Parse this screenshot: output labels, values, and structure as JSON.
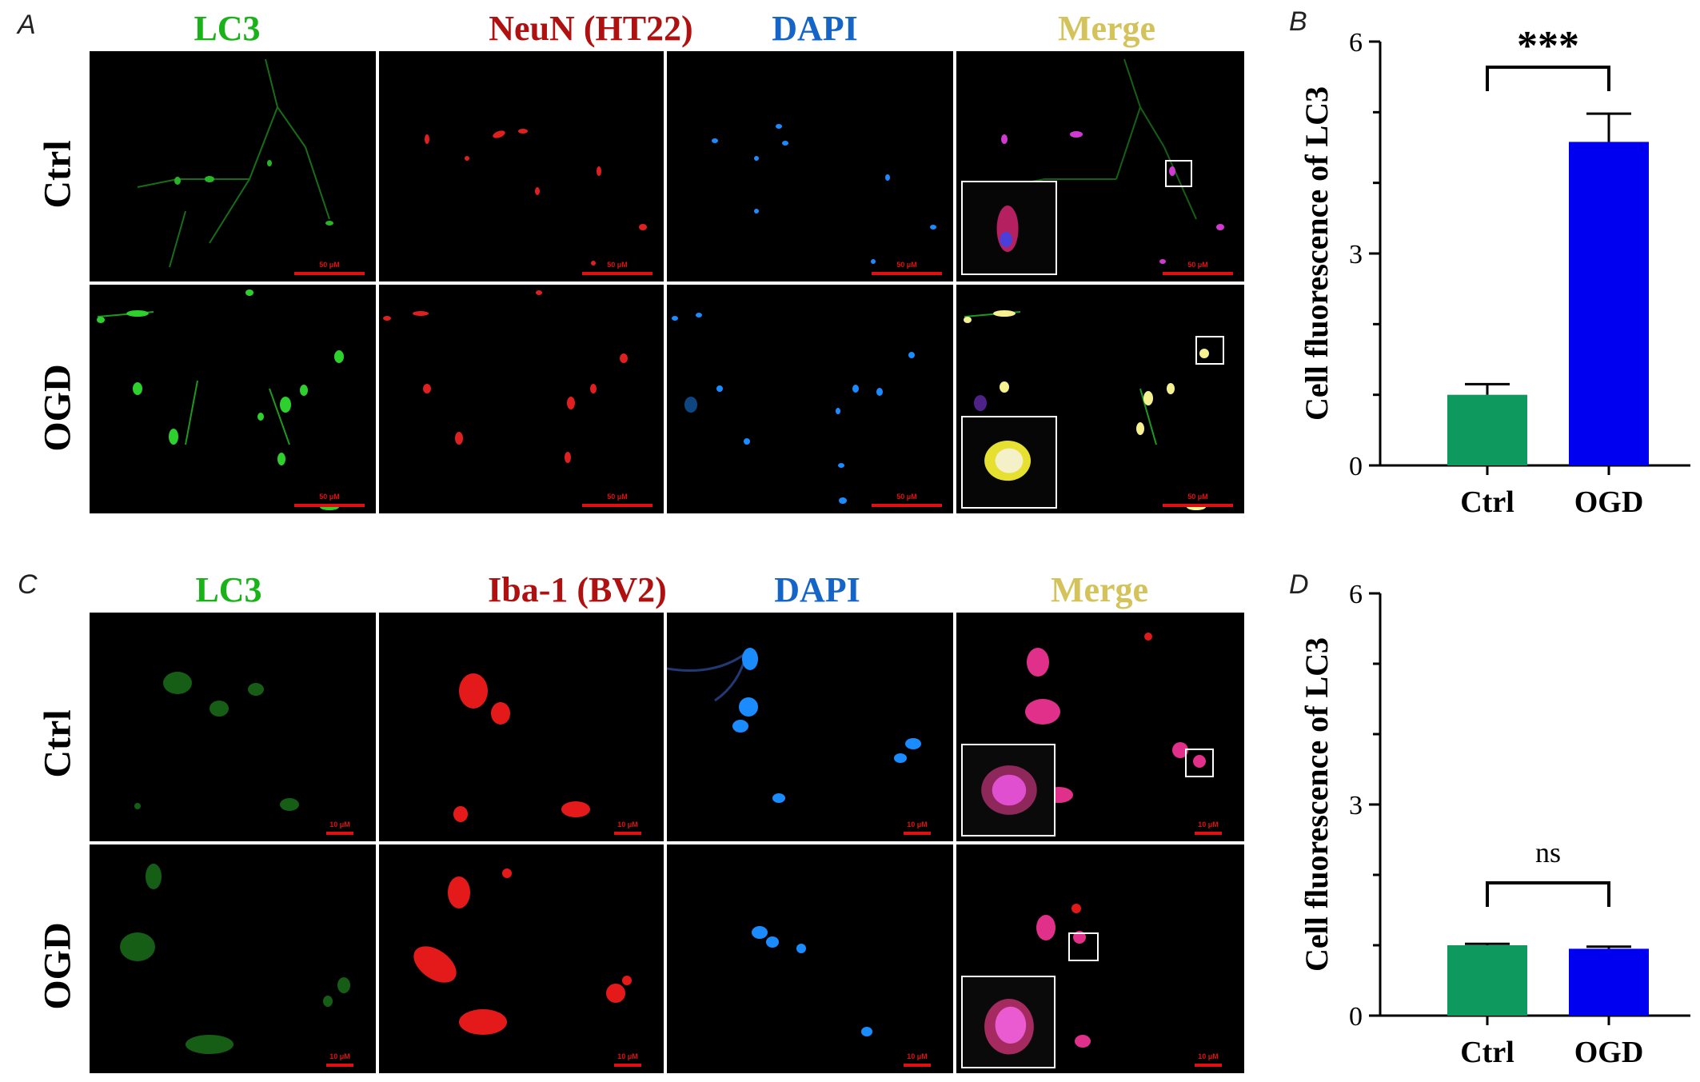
{
  "panels": {
    "A": {
      "letter": "A",
      "columns": [
        {
          "label": "LC3",
          "color": "#19b319"
        },
        {
          "label": "NeuN (HT22)",
          "color": "#b01010"
        },
        {
          "label": "DAPI",
          "color": "#1565c8"
        },
        {
          "label": "Merge",
          "color": "#d4c25a"
        }
      ],
      "rows": [
        "Ctrl",
        "OGD"
      ],
      "scale_label": "50 μM"
    },
    "C": {
      "letter": "C",
      "columns": [
        {
          "label": "LC3",
          "color": "#19b319"
        },
        {
          "label": "Iba-1 (BV2)",
          "color": "#b01010"
        },
        {
          "label": "DAPI",
          "color": "#1565c8"
        },
        {
          "label": "Merge",
          "color": "#d4c25a"
        }
      ],
      "rows": [
        "Ctrl",
        "OGD"
      ],
      "scale_label": "10 μM"
    },
    "B": {
      "letter": "B"
    },
    "D": {
      "letter": "D"
    }
  },
  "chart_data": [
    {
      "type": "bar",
      "panel": "B",
      "categories": [
        "Ctrl",
        "OGD"
      ],
      "values": [
        1.0,
        4.58
      ],
      "errors": [
        0.15,
        0.4
      ],
      "colors": [
        "#0e9a5f",
        "#0000f0"
      ],
      "ylabel": "Cell fluorescence of LC3",
      "xlabel": "",
      "ylim": [
        0,
        6
      ],
      "yticks": [
        0,
        3,
        6
      ],
      "significance": "***"
    },
    {
      "type": "bar",
      "panel": "D",
      "categories": [
        "Ctrl",
        "OGD"
      ],
      "values": [
        1.0,
        0.95
      ],
      "errors": [
        0.02,
        0.03
      ],
      "colors": [
        "#0e9a5f",
        "#0000f0"
      ],
      "ylabel": "Cell fluorescence of LC3",
      "xlabel": "",
      "ylim": [
        0,
        6
      ],
      "yticks": [
        0,
        3,
        6
      ],
      "significance": "ns"
    }
  ]
}
